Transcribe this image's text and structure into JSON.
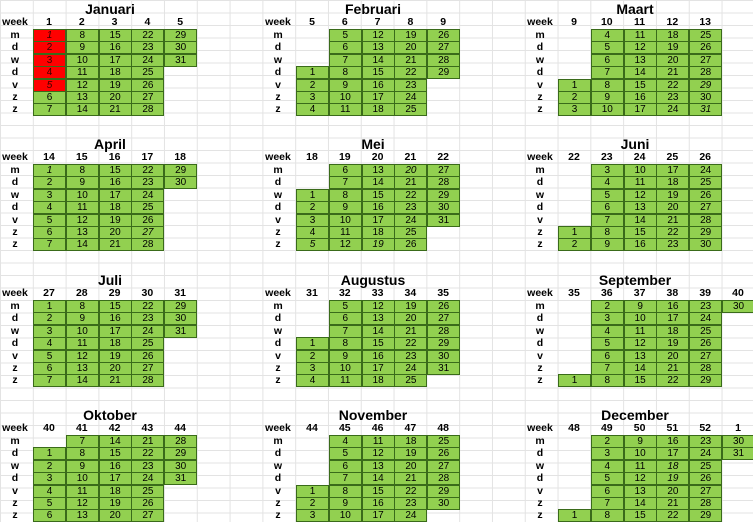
{
  "week_header": "week",
  "day_labels": [
    "m",
    "d",
    "w",
    "d",
    "v",
    "z",
    "z"
  ],
  "colors": {
    "normal": "#92d050",
    "holiday": "#ff0000"
  },
  "months": [
    {
      "name": "Januari",
      "weeks": [
        "1",
        "2",
        "3",
        "4",
        "5"
      ],
      "days": [
        [
          "1",
          "8",
          "15",
          "22",
          "29"
        ],
        [
          "2",
          "9",
          "16",
          "23",
          "30"
        ],
        [
          "3",
          "10",
          "17",
          "24",
          "31"
        ],
        [
          "4",
          "11",
          "18",
          "25",
          ""
        ],
        [
          "5",
          "12",
          "19",
          "26",
          ""
        ],
        [
          "6",
          "13",
          "20",
          "27",
          ""
        ],
        [
          "7",
          "14",
          "21",
          "28",
          ""
        ]
      ],
      "red": [
        [
          0,
          0
        ],
        [
          1,
          0
        ],
        [
          2,
          0
        ],
        [
          3,
          0
        ],
        [
          4,
          0
        ]
      ],
      "italic": [
        [
          0,
          0
        ],
        [
          4,
          0
        ]
      ]
    },
    {
      "name": "Februari",
      "weeks": [
        "5",
        "6",
        "7",
        "8",
        "9"
      ],
      "days": [
        [
          "",
          "5",
          "12",
          "19",
          "26"
        ],
        [
          "",
          "6",
          "13",
          "20",
          "27"
        ],
        [
          "",
          "7",
          "14",
          "21",
          "28"
        ],
        [
          "1",
          "8",
          "15",
          "22",
          "29"
        ],
        [
          "2",
          "9",
          "16",
          "23",
          ""
        ],
        [
          "3",
          "10",
          "17",
          "24",
          ""
        ],
        [
          "4",
          "11",
          "18",
          "25",
          ""
        ]
      ]
    },
    {
      "name": "Maart",
      "weeks": [
        "9",
        "10",
        "11",
        "12",
        "13"
      ],
      "days": [
        [
          "",
          "4",
          "11",
          "18",
          "25"
        ],
        [
          "",
          "5",
          "12",
          "19",
          "26"
        ],
        [
          "",
          "6",
          "13",
          "20",
          "27"
        ],
        [
          "",
          "7",
          "14",
          "21",
          "28"
        ],
        [
          "1",
          "8",
          "15",
          "22",
          "29"
        ],
        [
          "2",
          "9",
          "16",
          "23",
          "30"
        ],
        [
          "3",
          "10",
          "17",
          "24",
          "31"
        ]
      ],
      "italic": [
        [
          4,
          4
        ],
        [
          6,
          4
        ]
      ]
    },
    {
      "name": "April",
      "weeks": [
        "14",
        "15",
        "16",
        "17",
        "18"
      ],
      "days": [
        [
          "1",
          "8",
          "15",
          "22",
          "29"
        ],
        [
          "2",
          "9",
          "16",
          "23",
          "30"
        ],
        [
          "3",
          "10",
          "17",
          "24",
          ""
        ],
        [
          "4",
          "11",
          "18",
          "25",
          ""
        ],
        [
          "5",
          "12",
          "19",
          "26",
          ""
        ],
        [
          "6",
          "13",
          "20",
          "27",
          ""
        ],
        [
          "7",
          "14",
          "21",
          "28",
          ""
        ]
      ],
      "italic": [
        [
          0,
          0
        ],
        [
          5,
          3
        ]
      ]
    },
    {
      "name": "Mei",
      "weeks": [
        "18",
        "19",
        "20",
        "21",
        "22"
      ],
      "days": [
        [
          "",
          "6",
          "13",
          "20",
          "27"
        ],
        [
          "",
          "7",
          "14",
          "21",
          "28"
        ],
        [
          "1",
          "8",
          "15",
          "22",
          "29"
        ],
        [
          "2",
          "9",
          "16",
          "23",
          "30"
        ],
        [
          "3",
          "10",
          "17",
          "24",
          "31"
        ],
        [
          "4",
          "11",
          "18",
          "25",
          ""
        ],
        [
          "5",
          "12",
          "19",
          "26",
          ""
        ]
      ],
      "italic": [
        [
          0,
          3
        ],
        [
          6,
          0
        ],
        [
          6,
          2
        ]
      ]
    },
    {
      "name": "Juni",
      "weeks": [
        "22",
        "23",
        "24",
        "25",
        "26"
      ],
      "days": [
        [
          "",
          "3",
          "10",
          "17",
          "24"
        ],
        [
          "",
          "4",
          "11",
          "18",
          "25"
        ],
        [
          "",
          "5",
          "12",
          "19",
          "26"
        ],
        [
          "",
          "6",
          "13",
          "20",
          "27"
        ],
        [
          "",
          "7",
          "14",
          "21",
          "28"
        ],
        [
          "1",
          "8",
          "15",
          "22",
          "29"
        ],
        [
          "2",
          "9",
          "16",
          "23",
          "30"
        ]
      ]
    },
    {
      "name": "Juli",
      "weeks": [
        "27",
        "28",
        "29",
        "30",
        "31"
      ],
      "days": [
        [
          "1",
          "8",
          "15",
          "22",
          "29"
        ],
        [
          "2",
          "9",
          "16",
          "23",
          "30"
        ],
        [
          "3",
          "10",
          "17",
          "24",
          "31"
        ],
        [
          "4",
          "11",
          "18",
          "25",
          ""
        ],
        [
          "5",
          "12",
          "19",
          "26",
          ""
        ],
        [
          "6",
          "13",
          "20",
          "27",
          ""
        ],
        [
          "7",
          "14",
          "21",
          "28",
          ""
        ]
      ]
    },
    {
      "name": "Augustus",
      "weeks": [
        "31",
        "32",
        "33",
        "34",
        "35"
      ],
      "days": [
        [
          "",
          "5",
          "12",
          "19",
          "26"
        ],
        [
          "",
          "6",
          "13",
          "20",
          "27"
        ],
        [
          "",
          "7",
          "14",
          "21",
          "28"
        ],
        [
          "1",
          "8",
          "15",
          "22",
          "29"
        ],
        [
          "2",
          "9",
          "16",
          "23",
          "30"
        ],
        [
          "3",
          "10",
          "17",
          "24",
          "31"
        ],
        [
          "4",
          "11",
          "18",
          "25",
          ""
        ]
      ]
    },
    {
      "name": "September",
      "weeks": [
        "35",
        "36",
        "37",
        "38",
        "39",
        "40"
      ],
      "days": [
        [
          "",
          "2",
          "9",
          "16",
          "23",
          "30"
        ],
        [
          "",
          "3",
          "10",
          "17",
          "24",
          ""
        ],
        [
          "",
          "4",
          "11",
          "18",
          "25",
          ""
        ],
        [
          "",
          "5",
          "12",
          "19",
          "26",
          ""
        ],
        [
          "",
          "6",
          "13",
          "20",
          "27",
          ""
        ],
        [
          "",
          "7",
          "14",
          "21",
          "28",
          ""
        ],
        [
          "1",
          "8",
          "15",
          "22",
          "29",
          ""
        ]
      ]
    },
    {
      "name": "Oktober",
      "weeks": [
        "40",
        "41",
        "42",
        "43",
        "44"
      ],
      "days": [
        [
          "",
          "7",
          "14",
          "21",
          "28"
        ],
        [
          "1",
          "8",
          "15",
          "22",
          "29"
        ],
        [
          "2",
          "9",
          "16",
          "23",
          "30"
        ],
        [
          "3",
          "10",
          "17",
          "24",
          "31"
        ],
        [
          "4",
          "11",
          "18",
          "25",
          ""
        ],
        [
          "5",
          "12",
          "19",
          "26",
          ""
        ],
        [
          "6",
          "13",
          "20",
          "27",
          ""
        ]
      ]
    },
    {
      "name": "November",
      "weeks": [
        "44",
        "45",
        "46",
        "47",
        "48"
      ],
      "days": [
        [
          "",
          "4",
          "11",
          "18",
          "25"
        ],
        [
          "",
          "5",
          "12",
          "19",
          "26"
        ],
        [
          "",
          "6",
          "13",
          "20",
          "27"
        ],
        [
          "",
          "7",
          "14",
          "21",
          "28"
        ],
        [
          "1",
          "8",
          "15",
          "22",
          "29"
        ],
        [
          "2",
          "9",
          "16",
          "23",
          "30"
        ],
        [
          "3",
          "10",
          "17",
          "24",
          ""
        ]
      ]
    },
    {
      "name": "December",
      "weeks": [
        "48",
        "49",
        "50",
        "51",
        "52",
        "1"
      ],
      "days": [
        [
          "",
          "2",
          "9",
          "16",
          "23",
          "30"
        ],
        [
          "",
          "3",
          "10",
          "17",
          "24",
          "31"
        ],
        [
          "",
          "4",
          "11",
          "18",
          "25",
          ""
        ],
        [
          "",
          "5",
          "12",
          "19",
          "26",
          ""
        ],
        [
          "",
          "6",
          "13",
          "20",
          "27",
          ""
        ],
        [
          "",
          "7",
          "14",
          "21",
          "28",
          ""
        ],
        [
          "1",
          "8",
          "15",
          "22",
          "29",
          ""
        ]
      ],
      "italic": [
        [
          2,
          3
        ],
        [
          3,
          3
        ]
      ]
    }
  ]
}
